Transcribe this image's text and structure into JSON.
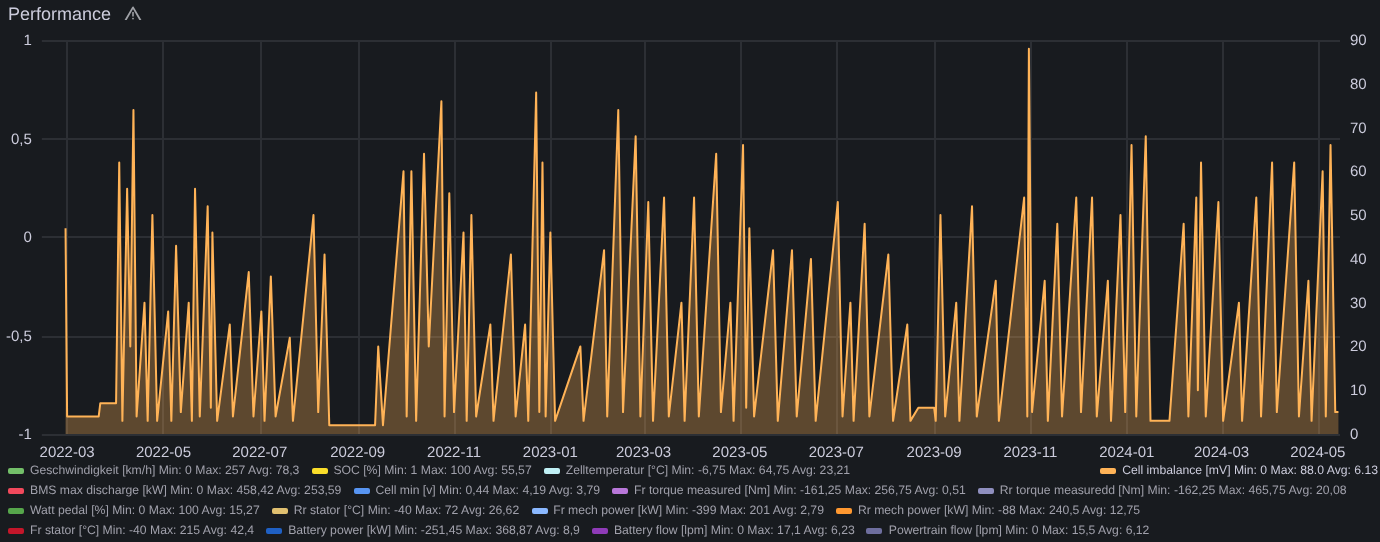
{
  "chart_data": {
    "type": "area",
    "title": "Performance",
    "legend": "bottom",
    "grid": true,
    "xlim": [
      "2022-02-13",
      "2024-05-15"
    ],
    "xticks": [
      "2022-03",
      "2022-05",
      "2022-07",
      "2022-09",
      "2022-11",
      "2023-01",
      "2023-03",
      "2023-05",
      "2023-07",
      "2023-09",
      "2023-11",
      "2024-01",
      "2024-03",
      "2024-05"
    ],
    "ylim": [
      -1,
      1
    ],
    "yticks": [
      -1,
      {
        "value": -0.5,
        "label": "-0,5"
      },
      0,
      {
        "value": 0.5,
        "label": "0,5"
      },
      1
    ],
    "y2lim": [
      0,
      90
    ],
    "y2ticks": [
      0,
      10,
      20,
      30,
      40,
      50,
      60,
      70,
      80,
      90
    ],
    "series": [
      {
        "name": "Geschwindigkeit [km/h] Min: 0 Max: 257 Avg: 78,3",
        "color": "#73bf69"
      },
      {
        "name": "SOC [%] Min: 1 Max: 100 Avg: 55,57",
        "color": "#fade2a"
      },
      {
        "name": "Zelltemperatur [°C] Min: -6,75 Max: 64,75 Avg: 23,21",
        "color": "#c0f0f5"
      },
      {
        "name": "Cell imbalance [mV] Min: 0 Max: 88.0 Avg: 6.13",
        "color": "#ffb357",
        "axis": "y2",
        "x": [
          "2022-02-28",
          "2022-03-01",
          "2022-03-21",
          "2022-03-22",
          "2022-04-01",
          "2022-04-03",
          "2022-04-05",
          "2022-04-08",
          "2022-04-10",
          "2022-04-12",
          "2022-04-14",
          "2022-04-19",
          "2022-04-21",
          "2022-04-24",
          "2022-04-27",
          "2022-05-04",
          "2022-05-06",
          "2022-05-09",
          "2022-05-12",
          "2022-05-17",
          "2022-05-19",
          "2022-05-21",
          "2022-05-24",
          "2022-05-29",
          "2022-05-31",
          "2022-06-01",
          "2022-06-04",
          "2022-06-12",
          "2022-06-14",
          "2022-06-24",
          "2022-06-27",
          "2022-07-02",
          "2022-07-04",
          "2022-07-08",
          "2022-07-11",
          "2022-07-20",
          "2022-07-22",
          "2022-08-04",
          "2022-08-07",
          "2022-08-11",
          "2022-08-14",
          "2022-09-12",
          "2022-09-14",
          "2022-09-17",
          "2022-09-30",
          "2022-10-02",
          "2022-10-05",
          "2022-10-08",
          "2022-10-13",
          "2022-10-16",
          "2022-10-24",
          "2022-10-26",
          "2022-10-29",
          "2022-11-01",
          "2022-11-07",
          "2022-11-09",
          "2022-11-12",
          "2022-11-15",
          "2022-11-24",
          "2022-11-26",
          "2022-12-07",
          "2022-12-10",
          "2022-12-16",
          "2022-12-18",
          "2022-12-23",
          "2022-12-25",
          "2022-12-27",
          "2022-12-29",
          "2023-01-01",
          "2023-01-04",
          "2023-01-20",
          "2023-01-22",
          "2023-02-04",
          "2023-02-06",
          "2023-02-13",
          "2023-02-16",
          "2023-02-24",
          "2023-02-27",
          "2023-03-04",
          "2023-03-07",
          "2023-03-14",
          "2023-03-17",
          "2023-03-25",
          "2023-03-27",
          "2023-04-02",
          "2023-04-05",
          "2023-04-16",
          "2023-04-19",
          "2023-04-25",
          "2023-04-27",
          "2023-05-03",
          "2023-05-05",
          "2023-05-07",
          "2023-05-10",
          "2023-05-22",
          "2023-05-25",
          "2023-06-03",
          "2023-06-06",
          "2023-06-15",
          "2023-06-18",
          "2023-07-02",
          "2023-07-05",
          "2023-07-10",
          "2023-07-12",
          "2023-07-19",
          "2023-07-22",
          "2023-08-03",
          "2023-08-06",
          "2023-08-15",
          "2023-08-17",
          "2023-08-22",
          "2023-09-01",
          "2023-09-02",
          "2023-09-05",
          "2023-09-08",
          "2023-09-15",
          "2023-09-17",
          "2023-09-25",
          "2023-09-28",
          "2023-10-10",
          "2023-10-12",
          "2023-10-28",
          "2023-10-30",
          "2023-10-31",
          "2023-11-02",
          "2023-11-10",
          "2023-11-12",
          "2023-11-18",
          "2023-11-21",
          "2023-11-30",
          "2023-12-03",
          "2023-12-10",
          "2023-12-13",
          "2023-12-20",
          "2023-12-22",
          "2023-12-28",
          "2023-12-31",
          "2024-01-04",
          "2024-01-07",
          "2024-01-13",
          "2024-01-16",
          "2024-01-28",
          "2024-02-06",
          "2024-02-09",
          "2024-02-14",
          "2024-02-15",
          "2024-02-17",
          "2024-02-20",
          "2024-02-28",
          "2024-03-02",
          "2024-03-12",
          "2024-03-14",
          "2024-03-23",
          "2024-03-26",
          "2024-04-02",
          "2024-04-05",
          "2024-04-16",
          "2024-04-19",
          "2024-04-25",
          "2024-04-27",
          "2024-05-04",
          "2024-05-06",
          "2024-05-09",
          "2024-05-12",
          "2024-05-14"
        ],
        "values": [
          47,
          4,
          4,
          7,
          7,
          62,
          3,
          56,
          20,
          74,
          4,
          30,
          3,
          50,
          3,
          28,
          3,
          43,
          5,
          30,
          3,
          56,
          4,
          52,
          6,
          46,
          3,
          25,
          4,
          37,
          4,
          28,
          3,
          36,
          4,
          22,
          3,
          50,
          5,
          41,
          2,
          2,
          20,
          2,
          60,
          4,
          60,
          3,
          64,
          20,
          76,
          4,
          55,
          5,
          46,
          3,
          50,
          4,
          25,
          3,
          41,
          4,
          25,
          3,
          78,
          5,
          62,
          4,
          46,
          3,
          20,
          3,
          42,
          4,
          74,
          5,
          68,
          4,
          53,
          3,
          54,
          4,
          30,
          3,
          54,
          4,
          64,
          5,
          30,
          3,
          66,
          6,
          47,
          4,
          42,
          3,
          42,
          4,
          40,
          3,
          53,
          4,
          30,
          3,
          48,
          4,
          41,
          3,
          25,
          3,
          6,
          6,
          3,
          50,
          4,
          30,
          3,
          52,
          4,
          35,
          3,
          54,
          4,
          88,
          5,
          35,
          3,
          48,
          4,
          54,
          5,
          54,
          4,
          35,
          3,
          50,
          5,
          66,
          4,
          68,
          3,
          3,
          48,
          4,
          54,
          10,
          62,
          4,
          53,
          3,
          30,
          3,
          54,
          4,
          62,
          5,
          62,
          4,
          35,
          3,
          60,
          4,
          66,
          5,
          5
        ]
      },
      {
        "name": "BMS max discharge [kW] Min: 0 Max: 458,42 Avg: 253,59",
        "color": "#f2495c"
      },
      {
        "name": "Cell min [v] Min: 0,44 Max: 4,19 Avg: 3,79",
        "color": "#5794f2"
      },
      {
        "name": "Fr torque measured [Nm] Min: -161,25 Max: 256,75 Avg: 0,51",
        "color": "#b877d9"
      },
      {
        "name": "Rr torque measuredd [Nm] Min: -162,25 Max: 465,75 Avg: 20,08",
        "color": "#8f8fbf"
      },
      {
        "name": "Watt pedal [%] Min: 0 Max: 100 Avg: 15,27",
        "color": "#56a64b"
      },
      {
        "name": "Rr stator [°C] Min: -40 Max: 72 Avg: 26,62",
        "color": "#e0c070"
      },
      {
        "name": "Fr mech power [kW] Min: -399 Max: 201 Avg: 2,79",
        "color": "#8ab8ff"
      },
      {
        "name": "Rr mech power [kW] Min: -88 Max: 240,5 Avg: 12,75",
        "color": "#ff9830"
      },
      {
        "name": "Fr stator [°C] Min: -40 Max: 215 Avg: 42,4",
        "color": "#c4162a"
      },
      {
        "name": "Battery power [kW] Min: -251,45 Max: 368,87 Avg: 8,9",
        "color": "#1f60c4"
      },
      {
        "name": "Battery flow [lpm] Min: 0 Max: 17,1 Avg: 6,23",
        "color": "#8f3bb8"
      },
      {
        "name": "Powertrain flow [lpm] Min: 0 Max: 15,5 Avg: 6,12",
        "color": "#6e6e9e"
      }
    ]
  }
}
